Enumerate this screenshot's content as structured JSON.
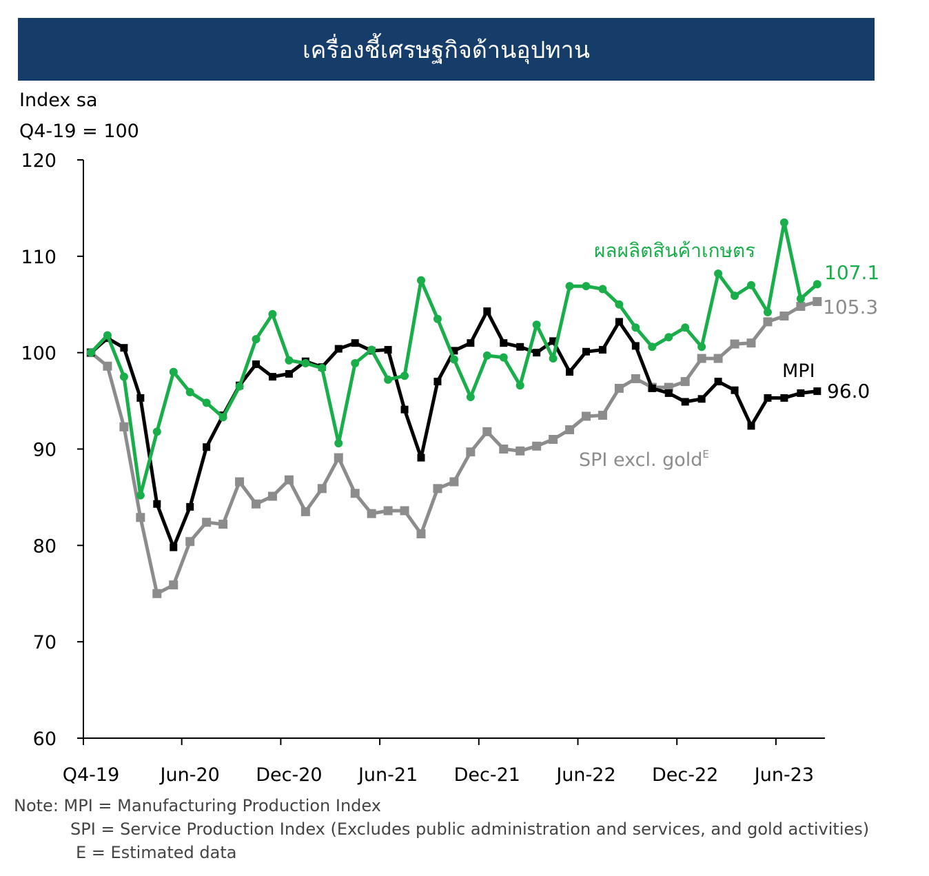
{
  "header": {
    "title": "เครื่องชี้เศรษฐกิจด้านอุปทาน"
  },
  "axis_unit": {
    "line1": "Index sa",
    "line2": "Q4-19 = 100"
  },
  "notes": {
    "line1": "Note: MPI = Manufacturing Production Index",
    "line2": "SPI = Service Production Index (Excludes public administration and services, and gold activities)",
    "line3": "E = Estimated data"
  },
  "colors": {
    "banner": "#163d69",
    "agri": "#1aae4b",
    "mpi": "#000000",
    "spi": "#8c8c8c"
  },
  "chart_data": {
    "type": "line",
    "title": "เครื่องชี้เศรษฐกิจด้านอุปทาน",
    "ylabel": "Index sa Q4-19 = 100",
    "ylim": [
      60,
      120
    ],
    "yticks": [
      60,
      70,
      80,
      90,
      100,
      110,
      120
    ],
    "xticks": [
      {
        "label": "Q4-19",
        "index": 0
      },
      {
        "label": "Jun-20",
        "index": 6
      },
      {
        "label": "Dec-20",
        "index": 12
      },
      {
        "label": "Jun-21",
        "index": 18
      },
      {
        "label": "Dec-21",
        "index": 24
      },
      {
        "label": "Jun-22",
        "index": 30
      },
      {
        "label": "Dec-22",
        "index": 36
      },
      {
        "label": "Jun-23",
        "index": 42
      }
    ],
    "series": [
      {
        "name": "ผลผลิตสินค้าเกษตร",
        "color": "#1aae4b",
        "marker": "circle",
        "end_label": "107.1",
        "values": [
          100,
          101.8,
          97.5,
          85.2,
          91.8,
          98.0,
          95.9,
          94.8,
          93.3,
          96.5,
          101.4,
          104.0,
          99.2,
          98.9,
          98.4,
          90.6,
          98.9,
          100.3,
          97.2,
          97.6,
          107.5,
          103.5,
          99.3,
          95.4,
          99.7,
          99.5,
          96.6,
          102.9,
          99.4,
          106.9,
          106.9,
          106.6,
          105.0,
          102.6,
          100.6,
          101.6,
          102.6,
          100.6,
          108.2,
          105.9,
          107.0,
          104.2,
          113.5,
          105.6,
          107.1
        ]
      },
      {
        "name": "MPI",
        "color": "#000000",
        "marker": "square",
        "end_label": "96.0",
        "values": [
          100,
          101.5,
          100.5,
          95.3,
          84.3,
          79.8,
          84.0,
          90.2,
          93.5,
          96.6,
          98.8,
          97.5,
          97.8,
          99.1,
          98.5,
          100.4,
          101.0,
          100.2,
          100.3,
          94.1,
          89.1,
          97.0,
          100.2,
          101.0,
          104.3,
          101.0,
          100.6,
          100.0,
          101.2,
          98.0,
          100.1,
          100.3,
          103.2,
          100.7,
          96.3,
          95.8,
          94.9,
          95.2,
          97.0,
          96.1,
          92.4,
          95.3,
          95.3,
          95.8,
          96.0
        ]
      },
      {
        "name": "SPI excl. gold",
        "color": "#8c8c8c",
        "marker": "square",
        "end_label": "105.3",
        "values": [
          100,
          98.6,
          92.3,
          82.9,
          75.0,
          75.9,
          80.4,
          82.4,
          82.2,
          86.6,
          84.3,
          85.1,
          86.8,
          83.5,
          85.9,
          89.1,
          85.4,
          83.3,
          83.6,
          83.6,
          81.2,
          85.9,
          86.6,
          89.7,
          91.8,
          90.0,
          89.8,
          90.3,
          91.0,
          92.0,
          93.4,
          93.5,
          96.3,
          97.3,
          96.4,
          96.4,
          97.0,
          99.4,
          99.4,
          100.9,
          101.0,
          103.2,
          103.8,
          104.8,
          105.3
        ]
      }
    ],
    "series_labels": {
      "agri": "ผลผลิตสินค้าเกษตร",
      "mpi": "MPI",
      "spi": "SPI excl. gold",
      "spi_superscript": "E"
    }
  }
}
